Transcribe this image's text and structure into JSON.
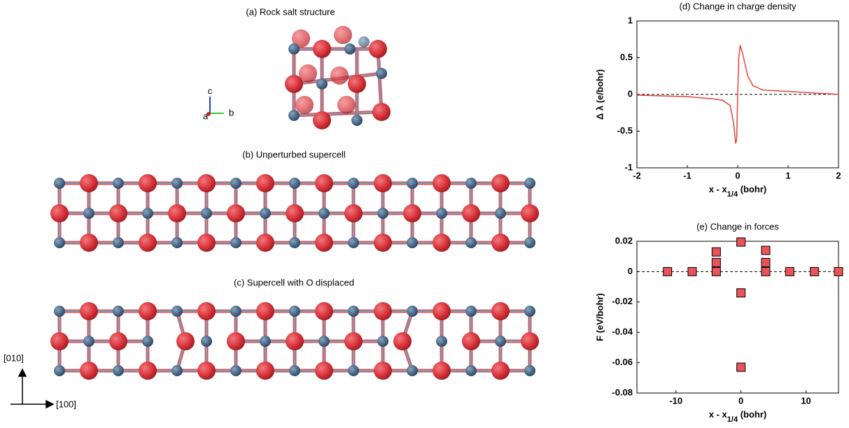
{
  "panels": {
    "a": "(a) Rock salt structure",
    "b": "(b) Unperturbed supercell",
    "c": "(c) Supercell with O displaced"
  },
  "axis_triad": [
    "c",
    "b",
    "a"
  ],
  "directions": [
    "[010]",
    "[100]"
  ],
  "chart_data": [
    {
      "type": "line",
      "title": "(d) Change in charge density",
      "xlabel": [
        "x - x",
        "1/4",
        " (bohr)"
      ],
      "ylabel": "Δ λ (e/bohr)",
      "x": [
        -2,
        -1.5,
        -1,
        -0.5,
        -0.3,
        -0.15,
        -0.08,
        -0.04,
        -0.02,
        0,
        0.02,
        0.05,
        0.1,
        0.2,
        0.3,
        0.5,
        1,
        1.5,
        2
      ],
      "values": [
        -0.01,
        -0.02,
        -0.03,
        -0.06,
        -0.08,
        -0.15,
        -0.4,
        -0.67,
        -0.6,
        0,
        0.5,
        0.67,
        0.55,
        0.25,
        0.12,
        0.06,
        0.04,
        0.02,
        0
      ],
      "color": "#e8413c",
      "hline": 0,
      "xlim": [
        -2,
        2
      ],
      "ylim": [
        -1,
        1
      ],
      "xticks": [
        -2,
        -1,
        0,
        1,
        2
      ],
      "yticks": [
        -1,
        -0.5,
        0,
        0.5,
        1
      ]
    },
    {
      "type": "scatter",
      "title": "(e) Change in forces",
      "xlabel": [
        "x - x",
        "1/4",
        " (bohr)"
      ],
      "ylabel": "F (eV/bohr)",
      "x": [
        -11.3,
        -7.5,
        -3.8,
        -3.8,
        -3.8,
        0,
        0,
        0,
        3.8,
        3.8,
        3.8,
        7.5,
        11.3,
        15
      ],
      "values": [
        0,
        0,
        0.013,
        0.006,
        0,
        0.0195,
        -0.014,
        -0.063,
        0.014,
        0.006,
        0,
        0,
        0,
        0
      ],
      "color": "#e8545a",
      "hline": 0,
      "xlim": [
        -16,
        15
      ],
      "ylim": [
        -0.08,
        0.02
      ],
      "xticks": [
        -10,
        0,
        10
      ],
      "yticks": [
        -0.08,
        -0.06,
        -0.04,
        -0.02,
        0,
        0.02
      ]
    }
  ]
}
